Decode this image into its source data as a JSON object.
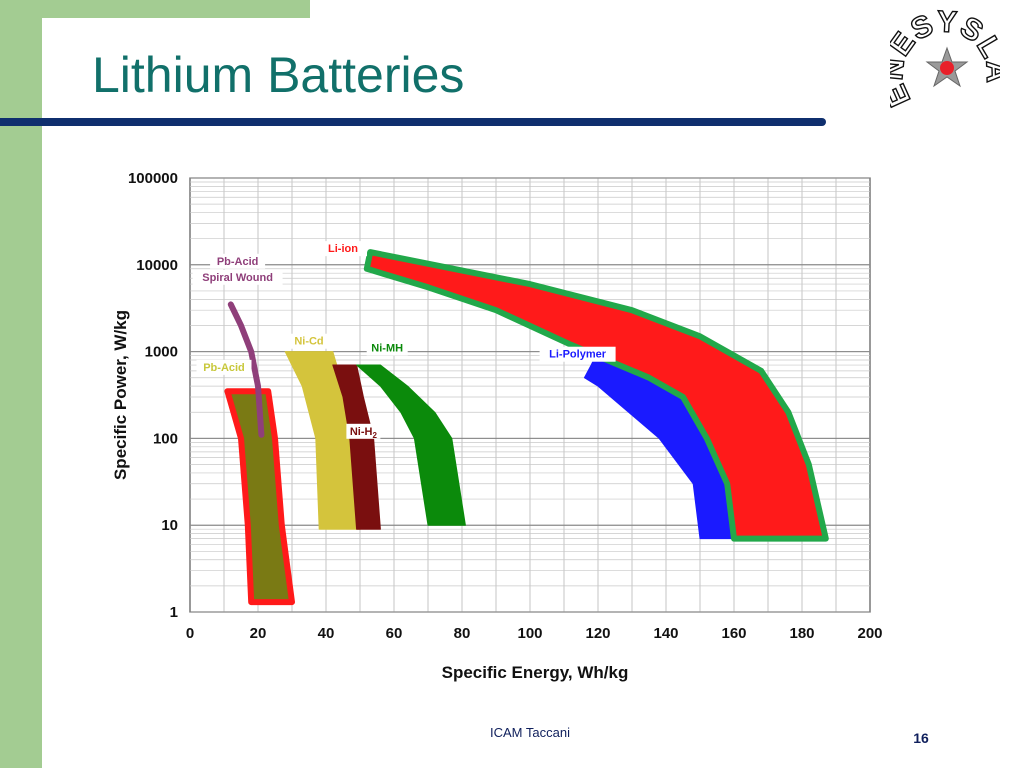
{
  "slide": {
    "title": "Lithium Batteries",
    "footer": "ICAM Taccani",
    "page_number": "16",
    "logo_text": "ENESYSLAB"
  },
  "colors": {
    "accent_green": "#a3cc92",
    "title_teal": "#11706a",
    "rule_navy": "#0f2f6e"
  },
  "chart_data": {
    "type": "area",
    "xlabel": "Specific Energy, Wh/kg",
    "ylabel": "Specific Power, W/kg",
    "xlim": [
      0,
      200
    ],
    "ylim": [
      1,
      100000
    ],
    "y_scale": "log",
    "grid": true,
    "x_ticks": [
      "0",
      "20",
      "40",
      "60",
      "80",
      "100",
      "120",
      "140",
      "160",
      "180",
      "200"
    ],
    "y_ticks": [
      "1",
      "10",
      "100",
      "1000",
      "10000",
      "100000"
    ],
    "series": [
      {
        "name": "Pb-Acid",
        "label": "Pb-Acid",
        "color": "#7a7a14",
        "outline": "#ff1a1a",
        "label_color": "#c8c83c",
        "polygon": [
          [
            11,
            350
          ],
          [
            23,
            350
          ],
          [
            25,
            100
          ],
          [
            27,
            10
          ],
          [
            30,
            1.3
          ],
          [
            18,
            1.3
          ],
          [
            17,
            10
          ],
          [
            15,
            100
          ]
        ]
      },
      {
        "name": "Pb-Acid Spiral Wound",
        "label": "Pb-Acid Spiral Wound",
        "color": "#8f3f7a",
        "label_color": "#8f3f7a",
        "line": [
          [
            12,
            3500
          ],
          [
            15,
            2000
          ],
          [
            18,
            1000
          ],
          [
            20,
            400
          ],
          [
            21,
            110
          ]
        ]
      },
      {
        "name": "Ni-Cd",
        "label": "Ni-Cd",
        "color": "#d4c43c",
        "label_color": "#d4c43c",
        "polygon": [
          [
            28,
            1000
          ],
          [
            42,
            1000
          ],
          [
            45,
            400
          ],
          [
            48,
            100
          ],
          [
            50,
            9
          ],
          [
            38,
            9
          ],
          [
            37,
            100
          ],
          [
            33,
            400
          ]
        ]
      },
      {
        "name": "Ni-H2",
        "label": "Ni-H",
        "sub": "2",
        "color": "#7a0f0f",
        "label_color": "#7a0f0f",
        "polygon": [
          [
            42,
            700
          ],
          [
            49,
            700
          ],
          [
            51,
            300
          ],
          [
            54,
            100
          ],
          [
            56,
            9
          ],
          [
            49,
            9
          ],
          [
            47,
            100
          ],
          [
            45,
            300
          ]
        ]
      },
      {
        "name": "Ni-MH",
        "label": "Ni-MH",
        "color": "#0b8a0b",
        "label_color": "#0b8a0b",
        "polygon": [
          [
            49,
            700
          ],
          [
            56,
            700
          ],
          [
            64,
            400
          ],
          [
            72,
            200
          ],
          [
            77,
            100
          ],
          [
            81,
            10
          ],
          [
            70,
            10
          ],
          [
            66,
            100
          ],
          [
            62,
            200
          ],
          [
            56,
            400
          ]
        ]
      },
      {
        "name": "Li-Polymer",
        "label": "Li-Polymer",
        "color": "#1a1aff",
        "label_color": "#1a1aff",
        "polygon": [
          [
            118,
            700
          ],
          [
            122,
            1500
          ],
          [
            140,
            700
          ],
          [
            160,
            300
          ],
          [
            168,
            100
          ],
          [
            175,
            7
          ],
          [
            150,
            7
          ],
          [
            148,
            30
          ],
          [
            138,
            100
          ],
          [
            120,
            400
          ],
          [
            116,
            500
          ]
        ]
      },
      {
        "name": "Li-ion",
        "label": "Li-ion",
        "color": "#ff1a1a",
        "outline": "#22a84a",
        "label_color": "#ff1a1a",
        "polygon": [
          [
            53,
            14000
          ],
          [
            100,
            6000
          ],
          [
            130,
            3000
          ],
          [
            150,
            1500
          ],
          [
            168,
            600
          ],
          [
            176,
            200
          ],
          [
            182,
            50
          ],
          [
            187,
            7
          ],
          [
            160,
            7
          ],
          [
            158,
            30
          ],
          [
            152,
            100
          ],
          [
            145,
            300
          ],
          [
            135,
            500
          ],
          [
            112,
            1200
          ],
          [
            90,
            3000
          ],
          [
            70,
            5500
          ],
          [
            52,
            9000
          ]
        ]
      }
    ]
  }
}
